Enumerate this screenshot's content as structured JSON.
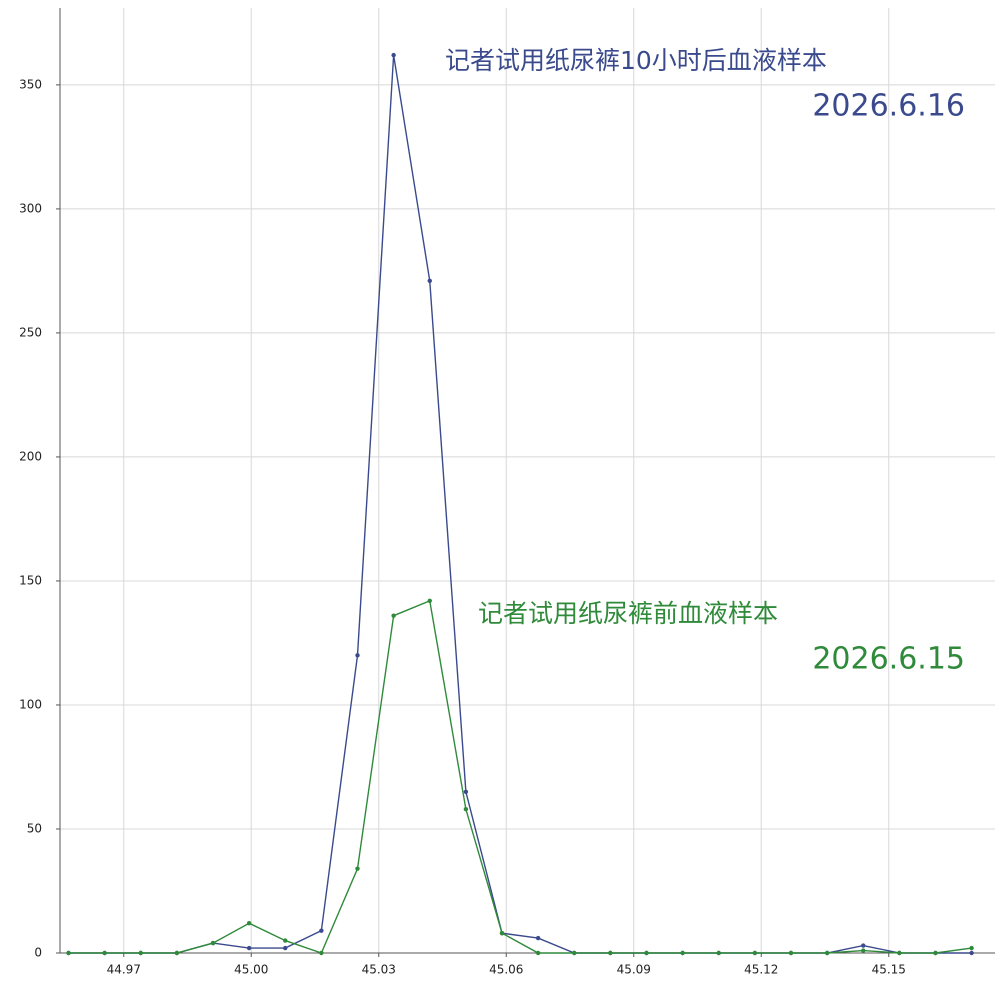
{
  "chart_data": {
    "type": "line",
    "x": [
      44.957,
      44.9655,
      44.974,
      44.9825,
      44.991,
      44.9995,
      45.008,
      45.0165,
      45.025,
      45.0335,
      45.042,
      45.0505,
      45.059,
      45.0675,
      45.076,
      45.0845,
      45.093,
      45.1015,
      45.11,
      45.1185,
      45.127,
      45.1355,
      45.144,
      45.1525,
      45.161,
      45.1695
    ],
    "series": [
      {
        "name": "记者试用纸尿裤10小时后血液样本",
        "date": "2026.6.16",
        "color": "#3a4a8c",
        "values": [
          0,
          0,
          0,
          0,
          4,
          2,
          2,
          9,
          120,
          362,
          271,
          65,
          8,
          6,
          0,
          0,
          0,
          0,
          0,
          0,
          0,
          0,
          3,
          0,
          0,
          0
        ]
      },
      {
        "name": "记者试用纸尿裤前血液样本",
        "date": "2026.6.15",
        "color": "#2f8a3a",
        "values": [
          0,
          0,
          0,
          0,
          4,
          12,
          5,
          0,
          34,
          136,
          142,
          58,
          8,
          0,
          0,
          0,
          0,
          0,
          0,
          0,
          0,
          0,
          1,
          0,
          0,
          2
        ]
      }
    ],
    "xlim": [
      44.955,
      45.175
    ],
    "xticks": [
      44.97,
      {
        "value": 45.0,
        "label": "45.00"
      },
      45.03,
      45.06,
      45.09,
      45.12,
      45.15
    ],
    "ylim": [
      0,
      381
    ],
    "yticks": [
      0,
      50,
      100,
      150,
      200,
      250,
      300,
      350
    ],
    "grid": true
  }
}
